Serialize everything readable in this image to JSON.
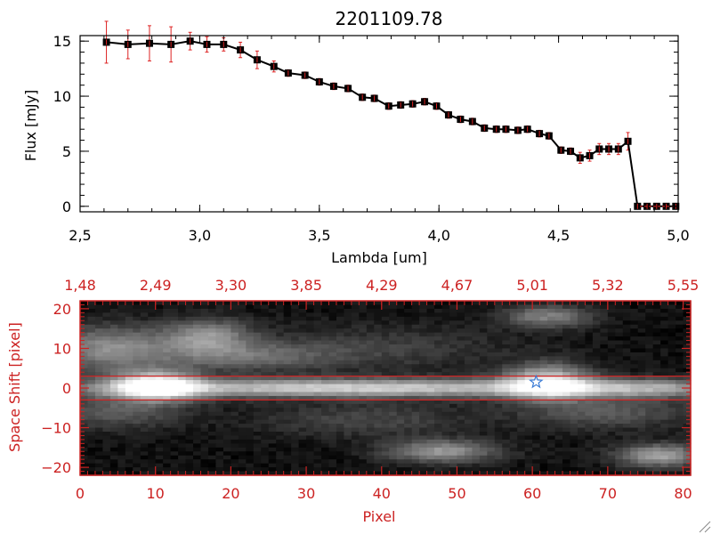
{
  "colors": {
    "axes_top": "#000000",
    "axes_bottom": "#cc2222",
    "error_bar": "#dd2222",
    "marker": "#000000",
    "line": "#000000",
    "star": "#3a7bd5",
    "band": "#cc2222"
  },
  "chart_data": [
    {
      "type": "line",
      "title": "2201109.78",
      "xlabel": "Lambda [um]",
      "ylabel": "Flux [mJy]",
      "xlim": [
        2.5,
        5.0
      ],
      "ylim": [
        -0.5,
        15.5
      ],
      "x_ticks": [
        "2.5",
        "3.0",
        "3.5",
        "4.0",
        "4.5",
        "5.0"
      ],
      "y_ticks": [
        "0",
        "5",
        "10",
        "15"
      ],
      "grid": false,
      "series": [
        {
          "x": [
            2.61,
            2.7,
            2.79,
            2.88,
            2.96,
            3.03,
            3.1,
            3.17,
            3.24,
            3.31,
            3.37,
            3.44,
            3.5,
            3.56,
            3.62,
            3.68,
            3.73,
            3.79,
            3.84,
            3.89,
            3.94,
            3.99,
            4.04,
            4.09,
            4.14,
            4.19,
            4.24,
            4.28,
            4.33,
            4.37,
            4.42,
            4.46,
            4.51,
            4.55,
            4.59,
            4.63,
            4.67,
            4.71,
            4.75,
            4.79,
            4.83,
            4.87,
            4.91,
            4.95,
            4.99
          ],
          "y": [
            14.9,
            14.7,
            14.8,
            14.7,
            15.0,
            14.7,
            14.7,
            14.2,
            13.3,
            12.7,
            12.1,
            11.9,
            11.3,
            10.9,
            10.7,
            9.9,
            9.8,
            9.1,
            9.2,
            9.3,
            9.5,
            9.1,
            8.3,
            7.9,
            7.7,
            7.1,
            7.0,
            7.0,
            6.9,
            7.0,
            6.6,
            6.4,
            5.1,
            5.0,
            4.4,
            4.6,
            5.2,
            5.2,
            5.2,
            5.9,
            0.0,
            0.0,
            0.0,
            0.0,
            0.0
          ],
          "yerr": [
            1.9,
            1.3,
            1.6,
            1.6,
            0.8,
            0.7,
            0.6,
            0.7,
            0.8,
            0.5,
            0.3,
            0.3,
            0.3,
            0.3,
            0.3,
            0.3,
            0.3,
            0.3,
            0.3,
            0.3,
            0.3,
            0.3,
            0.3,
            0.3,
            0.3,
            0.3,
            0.3,
            0.3,
            0.3,
            0.3,
            0.3,
            0.3,
            0.3,
            0.3,
            0.5,
            0.5,
            0.5,
            0.5,
            0.5,
            0.8,
            0.0,
            0.0,
            0.0,
            0.0,
            0.0
          ]
        }
      ]
    },
    {
      "type": "heatmap",
      "xlabel": "Pixel",
      "ylabel": "Space Shift [pixel]",
      "xlim": [
        0,
        81
      ],
      "ylim": [
        -22,
        22
      ],
      "x_ticks": [
        "0",
        "10",
        "20",
        "30",
        "40",
        "50",
        "60",
        "70",
        "80"
      ],
      "y_ticks": [
        "-20",
        "-10",
        "0",
        "10",
        "20"
      ],
      "top_ticks": [
        "1.48",
        "2.49",
        "3.30",
        "3.85",
        "4.29",
        "4.67",
        "5.01",
        "5.32",
        "5.55"
      ],
      "band": [
        -3,
        3
      ],
      "marker": {
        "x": 60.5,
        "y": 1.5,
        "symbol": "star"
      },
      "blobs": [
        {
          "x": 10,
          "y": 0.5,
          "sx": 4,
          "sy": 2.5,
          "a": 1.0
        },
        {
          "x": 62,
          "y": 1.5,
          "sx": 4,
          "sy": 3,
          "a": 0.75
        },
        {
          "x": 28,
          "y": 0,
          "sx": 22,
          "sy": 1.6,
          "a": 0.45
        },
        {
          "x": 50,
          "y": 0,
          "sx": 26,
          "sy": 1.6,
          "a": 0.38
        },
        {
          "x": 75,
          "y": 0,
          "sx": 8,
          "sy": 1.6,
          "a": 0.35
        },
        {
          "x": 4,
          "y": 10,
          "sx": 6,
          "sy": 4,
          "a": 0.45
        },
        {
          "x": 17,
          "y": 13,
          "sx": 4,
          "sy": 3,
          "a": 0.45
        },
        {
          "x": 22,
          "y": 8,
          "sx": 8,
          "sy": 2.5,
          "a": 0.3
        },
        {
          "x": 5,
          "y": -6,
          "sx": 6,
          "sy": 3,
          "a": 0.25
        },
        {
          "x": 48,
          "y": -16,
          "sx": 5,
          "sy": 2,
          "a": 0.5
        },
        {
          "x": 77,
          "y": -17,
          "sx": 4,
          "sy": 2,
          "a": 0.55
        },
        {
          "x": 62,
          "y": 18,
          "sx": 4,
          "sy": 2,
          "a": 0.4
        },
        {
          "x": 70,
          "y": -6,
          "sx": 8,
          "sy": 3,
          "a": 0.25
        },
        {
          "x": 38,
          "y": -8,
          "sx": 10,
          "sy": 3,
          "a": 0.18
        },
        {
          "x": 40,
          "y": 10,
          "sx": 12,
          "sy": 4,
          "a": 0.15
        }
      ]
    }
  ]
}
